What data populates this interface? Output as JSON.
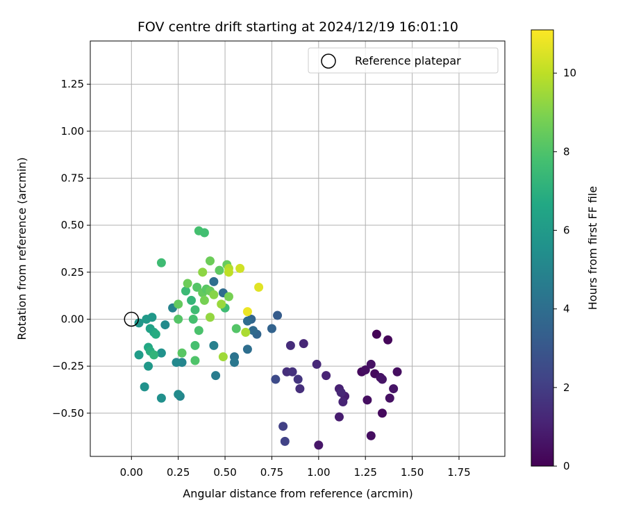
{
  "chart_data": {
    "type": "scatter",
    "title": "FOV centre drift starting at 2024/12/19 16:01:10",
    "xlabel": "Angular distance from reference (arcmin)",
    "ylabel": "Rotation from reference (arcmin)",
    "xlim": [
      -0.22,
      1.995
    ],
    "ylim": [
      -0.73,
      1.48
    ],
    "x_ticks": [
      0.0,
      0.25,
      0.5,
      0.75,
      1.0,
      1.25,
      1.5,
      1.75
    ],
    "x_tick_labels": [
      "0.00",
      "0.25",
      "0.50",
      "0.75",
      "1.00",
      "1.25",
      "1.50",
      "1.75"
    ],
    "y_ticks": [
      -0.5,
      -0.25,
      0.0,
      0.25,
      0.5,
      0.75,
      1.0,
      1.25
    ],
    "y_tick_labels": [
      "−0.50",
      "−0.25",
      "0.00",
      "0.25",
      "0.50",
      "0.75",
      "1.00",
      "1.25"
    ],
    "grid": true,
    "legend": {
      "position": "top-right",
      "entries": [
        "Reference platepar"
      ]
    },
    "reference_point": {
      "x": 0.0,
      "y": 0.0,
      "label": "Reference platepar"
    },
    "colorbar": {
      "label": "Hours from first FF file",
      "colormap": "viridis",
      "range": [
        0,
        11.1
      ],
      "ticks": [
        0,
        2,
        4,
        6,
        8,
        10
      ],
      "tick_labels": [
        "0",
        "2",
        "4",
        "6",
        "8",
        "10"
      ]
    },
    "points": [
      {
        "x": 1.0,
        "y": -0.67,
        "h": 0.7
      },
      {
        "x": 1.28,
        "y": -0.62,
        "h": 0.4
      },
      {
        "x": 1.34,
        "y": -0.5,
        "h": 0.3
      },
      {
        "x": 1.11,
        "y": -0.52,
        "h": 0.9
      },
      {
        "x": 1.31,
        "y": -0.08,
        "h": 0.1
      },
      {
        "x": 1.37,
        "y": -0.11,
        "h": 0.2
      },
      {
        "x": 1.23,
        "y": -0.28,
        "h": 0.3
      },
      {
        "x": 1.25,
        "y": -0.27,
        "h": 0.4
      },
      {
        "x": 1.28,
        "y": -0.24,
        "h": 0.5
      },
      {
        "x": 1.3,
        "y": -0.29,
        "h": 0.3
      },
      {
        "x": 1.33,
        "y": -0.31,
        "h": 0.5
      },
      {
        "x": 1.34,
        "y": -0.32,
        "h": 0.6
      },
      {
        "x": 1.42,
        "y": -0.28,
        "h": 0.4
      },
      {
        "x": 1.4,
        "y": -0.37,
        "h": 0.6
      },
      {
        "x": 1.38,
        "y": -0.42,
        "h": 0.5
      },
      {
        "x": 1.26,
        "y": -0.43,
        "h": 0.4
      },
      {
        "x": 1.14,
        "y": -0.41,
        "h": 0.9
      },
      {
        "x": 1.13,
        "y": -0.44,
        "h": 1.1
      },
      {
        "x": 1.11,
        "y": -0.37,
        "h": 1.0
      },
      {
        "x": 1.12,
        "y": -0.39,
        "h": 1.2
      },
      {
        "x": 1.04,
        "y": -0.3,
        "h": 1.1
      },
      {
        "x": 0.99,
        "y": -0.24,
        "h": 1.3
      },
      {
        "x": 0.92,
        "y": -0.13,
        "h": 1.2
      },
      {
        "x": 0.85,
        "y": -0.14,
        "h": 1.4
      },
      {
        "x": 0.83,
        "y": -0.28,
        "h": 1.5
      },
      {
        "x": 0.86,
        "y": -0.28,
        "h": 1.6
      },
      {
        "x": 0.89,
        "y": -0.32,
        "h": 1.7
      },
      {
        "x": 0.9,
        "y": -0.37,
        "h": 1.5
      },
      {
        "x": 0.81,
        "y": -0.57,
        "h": 2.1
      },
      {
        "x": 0.82,
        "y": -0.65,
        "h": 2.2
      },
      {
        "x": 0.77,
        "y": -0.32,
        "h": 2.5
      },
      {
        "x": 0.78,
        "y": 0.02,
        "h": 3.2
      },
      {
        "x": 0.75,
        "y": -0.05,
        "h": 3.5
      },
      {
        "x": 0.67,
        "y": -0.08,
        "h": 3.6
      },
      {
        "x": 0.65,
        "y": -0.06,
        "h": 3.8
      },
      {
        "x": 0.64,
        "y": 0.0,
        "h": 3.6
      },
      {
        "x": 0.62,
        "y": -0.01,
        "h": 3.9
      },
      {
        "x": 0.62,
        "y": -0.16,
        "h": 4.0
      },
      {
        "x": 0.55,
        "y": -0.2,
        "h": 4.2
      },
      {
        "x": 0.55,
        "y": -0.23,
        "h": 4.4
      },
      {
        "x": 0.45,
        "y": -0.3,
        "h": 4.6
      },
      {
        "x": 0.44,
        "y": -0.14,
        "h": 4.8
      },
      {
        "x": 0.49,
        "y": 0.14,
        "h": 3.9
      },
      {
        "x": 0.44,
        "y": 0.2,
        "h": 4.0
      },
      {
        "x": 0.26,
        "y": -0.41,
        "h": 5.0
      },
      {
        "x": 0.25,
        "y": -0.4,
        "h": 5.3
      },
      {
        "x": 0.16,
        "y": -0.42,
        "h": 5.5
      },
      {
        "x": 0.07,
        "y": -0.36,
        "h": 5.6
      },
      {
        "x": 0.27,
        "y": -0.23,
        "h": 5.0
      },
      {
        "x": 0.24,
        "y": -0.23,
        "h": 5.2
      },
      {
        "x": 0.22,
        "y": 0.06,
        "h": 4.9
      },
      {
        "x": 0.18,
        "y": -0.03,
        "h": 5.3
      },
      {
        "x": 0.16,
        "y": -0.18,
        "h": 5.6
      },
      {
        "x": 0.09,
        "y": -0.25,
        "h": 5.9
      },
      {
        "x": 0.04,
        "y": -0.19,
        "h": 6.1
      },
      {
        "x": 0.04,
        "y": -0.02,
        "h": 5.8
      },
      {
        "x": 0.08,
        "y": 0.0,
        "h": 6.0
      },
      {
        "x": 0.11,
        "y": 0.01,
        "h": 5.9
      },
      {
        "x": 0.1,
        "y": -0.05,
        "h": 6.3
      },
      {
        "x": 0.12,
        "y": -0.07,
        "h": 6.5
      },
      {
        "x": 0.13,
        "y": -0.08,
        "h": 6.8
      },
      {
        "x": 0.09,
        "y": -0.15,
        "h": 6.6
      },
      {
        "x": 0.1,
        "y": -0.17,
        "h": 6.9
      },
      {
        "x": 0.12,
        "y": -0.19,
        "h": 7.2
      },
      {
        "x": 0.16,
        "y": 0.3,
        "h": 7.6
      },
      {
        "x": 0.36,
        "y": 0.47,
        "h": 7.8
      },
      {
        "x": 0.39,
        "y": 0.46,
        "h": 7.7
      },
      {
        "x": 0.29,
        "y": 0.15,
        "h": 7.5
      },
      {
        "x": 0.32,
        "y": 0.1,
        "h": 7.3
      },
      {
        "x": 0.34,
        "y": 0.05,
        "h": 7.6
      },
      {
        "x": 0.33,
        "y": 0.0,
        "h": 7.8
      },
      {
        "x": 0.36,
        "y": -0.06,
        "h": 7.9
      },
      {
        "x": 0.34,
        "y": -0.14,
        "h": 7.8
      },
      {
        "x": 0.27,
        "y": -0.18,
        "h": 8.2
      },
      {
        "x": 0.34,
        "y": -0.22,
        "h": 8.0
      },
      {
        "x": 0.25,
        "y": 0.0,
        "h": 8.1
      },
      {
        "x": 0.25,
        "y": 0.08,
        "h": 8.4
      },
      {
        "x": 0.5,
        "y": 0.06,
        "h": 7.6
      },
      {
        "x": 0.56,
        "y": -0.05,
        "h": 8.1
      },
      {
        "x": 0.3,
        "y": 0.19,
        "h": 8.6
      },
      {
        "x": 0.35,
        "y": 0.17,
        "h": 8.1
      },
      {
        "x": 0.38,
        "y": 0.14,
        "h": 8.4
      },
      {
        "x": 0.4,
        "y": 0.16,
        "h": 8.2
      },
      {
        "x": 0.42,
        "y": 0.15,
        "h": 8.5
      },
      {
        "x": 0.39,
        "y": 0.1,
        "h": 8.8
      },
      {
        "x": 0.42,
        "y": 0.31,
        "h": 8.6
      },
      {
        "x": 0.47,
        "y": 0.26,
        "h": 8.3
      },
      {
        "x": 0.51,
        "y": 0.29,
        "h": 8.5
      },
      {
        "x": 0.52,
        "y": 0.12,
        "h": 8.8
      },
      {
        "x": 0.44,
        "y": 0.13,
        "h": 9.1
      },
      {
        "x": 0.38,
        "y": 0.25,
        "h": 9.2
      },
      {
        "x": 0.48,
        "y": 0.08,
        "h": 9.4
      },
      {
        "x": 0.42,
        "y": 0.01,
        "h": 9.3
      },
      {
        "x": 0.49,
        "y": -0.2,
        "h": 9.5
      },
      {
        "x": 0.61,
        "y": -0.07,
        "h": 9.7
      },
      {
        "x": 0.52,
        "y": 0.27,
        "h": 9.8
      },
      {
        "x": 0.52,
        "y": 0.25,
        "h": 10.0
      },
      {
        "x": 0.58,
        "y": 0.27,
        "h": 10.3
      },
      {
        "x": 0.62,
        "y": 0.04,
        "h": 10.8
      },
      {
        "x": 0.68,
        "y": 0.17,
        "h": 10.6
      }
    ]
  }
}
